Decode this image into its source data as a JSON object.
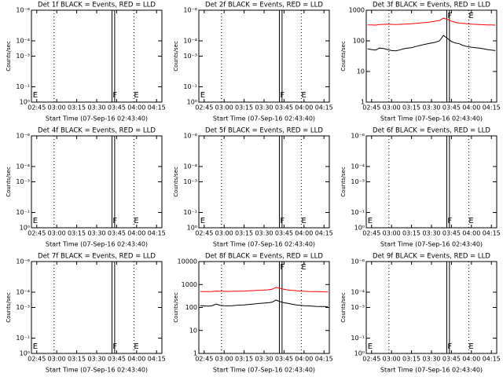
{
  "chart_data": [
    {
      "type": "line",
      "title": "Det 1f BLACK = Events, RED = LLD",
      "y_label": "Counts/sec",
      "x_label": "Start Time (07-Sep-16 02:43:40)",
      "y_scale": "log",
      "xlim": [
        161,
        259
      ],
      "ylim": [
        1,
        1e-06
      ],
      "xticks": [
        {
          "value": 165,
          "label": "02:45"
        },
        {
          "value": 180,
          "label": "03:00"
        },
        {
          "value": 195,
          "label": "03:15"
        },
        {
          "value": 210,
          "label": "03:30"
        },
        {
          "value": 225,
          "label": "03:45"
        },
        {
          "value": 240,
          "label": "04:00"
        },
        {
          "value": 255,
          "label": "04:15"
        }
      ],
      "yticks": [
        {
          "value": 1,
          "label": "10⁰"
        },
        {
          "value": 0.1,
          "label": "10⁻¹"
        },
        {
          "value": 0.001,
          "label": "10⁻³"
        },
        {
          "value": 0.0001,
          "label": "10⁻⁴"
        },
        {
          "value": 1e-06,
          "label": "10⁻⁶"
        }
      ],
      "vlines_dotted": [
        178,
        238
      ],
      "vlines_solid": [
        221.5,
        223.5
      ],
      "annotations": [
        {
          "text": "E",
          "x": 162,
          "y": 1
        },
        {
          "text": "F",
          "x": 222,
          "y": 1
        },
        {
          "text": "E",
          "x": 238,
          "y": 1
        }
      ],
      "x": [],
      "series": []
    },
    {
      "type": "line",
      "title": "Det 2f BLACK = Events, RED = LLD",
      "y_label": "Counts/sec",
      "x_label": "Start Time (07-Sep-16 02:43:40)",
      "y_scale": "log",
      "xlim": [
        161,
        259
      ],
      "ylim": [
        1,
        1e-06
      ],
      "xticks": [
        {
          "value": 165,
          "label": "02:45"
        },
        {
          "value": 180,
          "label": "03:00"
        },
        {
          "value": 195,
          "label": "03:15"
        },
        {
          "value": 210,
          "label": "03:30"
        },
        {
          "value": 225,
          "label": "03:45"
        },
        {
          "value": 240,
          "label": "04:00"
        },
        {
          "value": 255,
          "label": "04:15"
        }
      ],
      "yticks": [
        {
          "value": 1,
          "label": "10⁰"
        },
        {
          "value": 0.1,
          "label": "10⁻¹"
        },
        {
          "value": 0.001,
          "label": "10⁻³"
        },
        {
          "value": 0.0001,
          "label": "10⁻⁴"
        },
        {
          "value": 1e-06,
          "label": "10⁻⁶"
        }
      ],
      "vlines_dotted": [
        178,
        238
      ],
      "vlines_solid": [
        221.5,
        223.5
      ],
      "annotations": [
        {
          "text": "E",
          "x": 162,
          "y": 1
        },
        {
          "text": "F",
          "x": 222,
          "y": 1
        },
        {
          "text": "E",
          "x": 238,
          "y": 1
        }
      ],
      "x": [],
      "series": []
    },
    {
      "type": "line",
      "title": "Det 3f BLACK = Events, RED = LLD",
      "y_label": "Counts/sec",
      "x_label": "Start Time (07-Sep-16 02:43:40)",
      "y_scale": "log",
      "xlim": [
        161,
        259
      ],
      "ylim": [
        1,
        1000
      ],
      "xticks": [
        {
          "value": 165,
          "label": "02:45"
        },
        {
          "value": 180,
          "label": "03:00"
        },
        {
          "value": 195,
          "label": "03:15"
        },
        {
          "value": 210,
          "label": "03:30"
        },
        {
          "value": 225,
          "label": "03:45"
        },
        {
          "value": 240,
          "label": "04:00"
        },
        {
          "value": 255,
          "label": "04:15"
        }
      ],
      "yticks": [
        1,
        10,
        100,
        1000
      ],
      "vlines_dotted": [
        178,
        238
      ],
      "vlines_solid": [
        221.5,
        223.5
      ],
      "annotations": [
        {
          "text": "F",
          "x": 222,
          "y": 1000
        },
        {
          "text": "E",
          "x": 238,
          "y": 1000
        }
      ],
      "x": [
        162,
        165,
        168,
        171,
        174,
        177,
        180,
        183,
        186,
        189,
        192,
        195,
        198,
        201,
        204,
        207,
        210,
        213,
        216,
        219,
        222,
        225,
        228,
        231,
        234,
        237,
        240,
        243,
        246,
        249,
        252,
        255,
        258
      ],
      "series": [
        {
          "color": "#ff0000",
          "values": [
            330,
            330,
            325,
            340,
            345,
            350,
            345,
            340,
            345,
            350,
            355,
            360,
            370,
            380,
            390,
            400,
            420,
            440,
            460,
            550,
            500,
            440,
            400,
            380,
            370,
            360,
            350,
            345,
            340,
            335,
            330,
            330,
            325
          ]
        },
        {
          "color": "#000000",
          "values": [
            55,
            52,
            50,
            58,
            56,
            52,
            48,
            47,
            50,
            55,
            58,
            60,
            65,
            70,
            75,
            80,
            85,
            90,
            100,
            150,
            120,
            95,
            85,
            80,
            70,
            65,
            62,
            60,
            58,
            55,
            52,
            50,
            48
          ]
        }
      ]
    },
    {
      "type": "line",
      "title": "Det 4f BLACK = Events, RED = LLD",
      "y_label": "Counts/sec",
      "x_label": "Start Time (07-Sep-16 02:43:40)",
      "y_scale": "log",
      "xlim": [
        161,
        259
      ],
      "ylim": [
        1,
        1e-06
      ],
      "xticks": [
        {
          "value": 165,
          "label": "02:45"
        },
        {
          "value": 180,
          "label": "03:00"
        },
        {
          "value": 195,
          "label": "03:15"
        },
        {
          "value": 210,
          "label": "03:30"
        },
        {
          "value": 225,
          "label": "03:45"
        },
        {
          "value": 240,
          "label": "04:00"
        },
        {
          "value": 255,
          "label": "04:15"
        }
      ],
      "yticks": [
        {
          "value": 1,
          "label": "10⁰"
        },
        {
          "value": 0.1,
          "label": "10⁻¹"
        },
        {
          "value": 0.001,
          "label": "10⁻³"
        },
        {
          "value": 0.0001,
          "label": "10⁻⁴"
        },
        {
          "value": 1e-06,
          "label": "10⁻⁶"
        }
      ],
      "vlines_dotted": [
        178,
        238
      ],
      "vlines_solid": [
        221.5,
        223.5
      ],
      "annotations": [
        {
          "text": "E",
          "x": 162,
          "y": 1
        },
        {
          "text": "F",
          "x": 222,
          "y": 1
        },
        {
          "text": "E",
          "x": 238,
          "y": 1
        }
      ],
      "x": [],
      "series": []
    },
    {
      "type": "line",
      "title": "Det 5f BLACK = Events, RED = LLD",
      "y_label": "Counts/sec",
      "x_label": "Start Time (07-Sep-16 02:43:40)",
      "y_scale": "log",
      "xlim": [
        161,
        259
      ],
      "ylim": [
        1,
        1e-06
      ],
      "xticks": [
        {
          "value": 165,
          "label": "02:45"
        },
        {
          "value": 180,
          "label": "03:00"
        },
        {
          "value": 195,
          "label": "03:15"
        },
        {
          "value": 210,
          "label": "03:30"
        },
        {
          "value": 225,
          "label": "03:45"
        },
        {
          "value": 240,
          "label": "04:00"
        },
        {
          "value": 255,
          "label": "04:15"
        }
      ],
      "yticks": [
        {
          "value": 1,
          "label": "10⁰"
        },
        {
          "value": 0.1,
          "label": "10⁻¹"
        },
        {
          "value": 0.001,
          "label": "10⁻³"
        },
        {
          "value": 0.0001,
          "label": "10⁻⁴"
        },
        {
          "value": 1e-06,
          "label": "10⁻⁶"
        }
      ],
      "vlines_dotted": [
        178,
        238
      ],
      "vlines_solid": [
        221.5,
        223.5
      ],
      "annotations": [
        {
          "text": "E",
          "x": 162,
          "y": 1
        },
        {
          "text": "F",
          "x": 222,
          "y": 1
        },
        {
          "text": "E",
          "x": 238,
          "y": 1
        }
      ],
      "x": [],
      "series": []
    },
    {
      "type": "line",
      "title": "Det 6f BLACK = Events, RED = LLD",
      "y_label": "Counts/sec",
      "x_label": "Start Time (07-Sep-16 02:43:40)",
      "y_scale": "log",
      "xlim": [
        161,
        259
      ],
      "ylim": [
        1,
        1e-06
      ],
      "xticks": [
        {
          "value": 165,
          "label": "02:45"
        },
        {
          "value": 180,
          "label": "03:00"
        },
        {
          "value": 195,
          "label": "03:15"
        },
        {
          "value": 210,
          "label": "03:30"
        },
        {
          "value": 225,
          "label": "03:45"
        },
        {
          "value": 240,
          "label": "04:00"
        },
        {
          "value": 255,
          "label": "04:15"
        }
      ],
      "yticks": [
        {
          "value": 1,
          "label": "10⁰"
        },
        {
          "value": 0.1,
          "label": "10⁻¹"
        },
        {
          "value": 0.001,
          "label": "10⁻³"
        },
        {
          "value": 0.0001,
          "label": "10⁻⁴"
        },
        {
          "value": 1e-06,
          "label": "10⁻⁶"
        }
      ],
      "vlines_dotted": [
        178,
        238
      ],
      "vlines_solid": [
        221.5,
        223.5
      ],
      "annotations": [
        {
          "text": "E",
          "x": 162,
          "y": 1
        },
        {
          "text": "F",
          "x": 222,
          "y": 1
        },
        {
          "text": "E",
          "x": 238,
          "y": 1
        }
      ],
      "x": [],
      "series": []
    },
    {
      "type": "line",
      "title": "Det 7f BLACK = Events, RED = LLD",
      "y_label": "Counts/sec",
      "x_label": "Start Time (07-Sep-16 02:43:40)",
      "y_scale": "log",
      "xlim": [
        161,
        259
      ],
      "ylim": [
        1,
        1e-06
      ],
      "xticks": [
        {
          "value": 165,
          "label": "02:45"
        },
        {
          "value": 180,
          "label": "03:00"
        },
        {
          "value": 195,
          "label": "03:15"
        },
        {
          "value": 210,
          "label": "03:30"
        },
        {
          "value": 225,
          "label": "03:45"
        },
        {
          "value": 240,
          "label": "04:00"
        },
        {
          "value": 255,
          "label": "04:15"
        }
      ],
      "yticks": [
        {
          "value": 1,
          "label": "10⁰"
        },
        {
          "value": 0.1,
          "label": "10⁻¹"
        },
        {
          "value": 0.001,
          "label": "10⁻³"
        },
        {
          "value": 0.0001,
          "label": "10⁻⁴"
        },
        {
          "value": 1e-06,
          "label": "10⁻⁶"
        }
      ],
      "vlines_dotted": [
        178,
        238
      ],
      "vlines_solid": [
        221.5,
        223.5
      ],
      "annotations": [
        {
          "text": "E",
          "x": 162,
          "y": 1
        },
        {
          "text": "F",
          "x": 222,
          "y": 1
        },
        {
          "text": "E",
          "x": 238,
          "y": 1
        }
      ],
      "x": [],
      "series": []
    },
    {
      "type": "line",
      "title": "Det 8f BLACK = Events, RED = LLD",
      "y_label": "Counts/sec",
      "x_label": "Start Time (07-Sep-16 02:43:40)",
      "y_scale": "log",
      "xlim": [
        161,
        259
      ],
      "ylim": [
        1,
        10000
      ],
      "xticks": [
        {
          "value": 165,
          "label": "02:45"
        },
        {
          "value": 180,
          "label": "03:00"
        },
        {
          "value": 195,
          "label": "03:15"
        },
        {
          "value": 210,
          "label": "03:30"
        },
        {
          "value": 225,
          "label": "03:45"
        },
        {
          "value": 240,
          "label": "04:00"
        },
        {
          "value": 255,
          "label": "04:15"
        }
      ],
      "yticks": [
        1,
        10,
        100,
        1000,
        10000
      ],
      "vlines_dotted": [
        178,
        238
      ],
      "vlines_solid": [
        221.5,
        223.5
      ],
      "annotations": [
        {
          "text": "F",
          "x": 222,
          "y": 10000
        },
        {
          "text": "E",
          "x": 238,
          "y": 10000
        }
      ],
      "x": [
        162,
        165,
        168,
        171,
        174,
        177,
        180,
        183,
        186,
        189,
        192,
        195,
        198,
        201,
        204,
        207,
        210,
        213,
        216,
        219,
        222,
        225,
        228,
        231,
        234,
        237,
        240,
        243,
        246,
        249,
        252,
        255,
        258
      ],
      "series": [
        {
          "color": "#ff0000",
          "values": [
            500,
            495,
            490,
            500,
            520,
            510,
            505,
            500,
            505,
            510,
            515,
            520,
            530,
            540,
            550,
            560,
            575,
            590,
            620,
            750,
            680,
            620,
            580,
            560,
            540,
            520,
            510,
            500,
            495,
            490,
            485,
            480,
            480
          ]
        },
        {
          "color": "#000000",
          "values": [
            120,
            118,
            115,
            120,
            140,
            125,
            120,
            118,
            120,
            125,
            128,
            130,
            135,
            140,
            145,
            150,
            155,
            160,
            170,
            210,
            180,
            160,
            150,
            140,
            130,
            125,
            120,
            118,
            115,
            112,
            110,
            110,
            108
          ]
        }
      ]
    },
    {
      "type": "line",
      "title": "Det 9f BLACK = Events, RED = LLD",
      "y_label": "Counts/sec",
      "x_label": "Start Time (07-Sep-16 02:43:40)",
      "y_scale": "log",
      "xlim": [
        161,
        259
      ],
      "ylim": [
        1,
        1e-06
      ],
      "xticks": [
        {
          "value": 165,
          "label": "02:45"
        },
        {
          "value": 180,
          "label": "03:00"
        },
        {
          "value": 195,
          "label": "03:15"
        },
        {
          "value": 210,
          "label": "03:30"
        },
        {
          "value": 225,
          "label": "03:45"
        },
        {
          "value": 240,
          "label": "04:00"
        },
        {
          "value": 255,
          "label": "04:15"
        }
      ],
      "yticks": [
        {
          "value": 1,
          "label": "10⁰"
        },
        {
          "value": 0.1,
          "label": "10⁻¹"
        },
        {
          "value": 0.001,
          "label": "10⁻³"
        },
        {
          "value": 0.0001,
          "label": "10⁻⁴"
        },
        {
          "value": 1e-06,
          "label": "10⁻⁶"
        }
      ],
      "vlines_dotted": [
        178,
        238
      ],
      "vlines_solid": [
        221.5,
        223.5
      ],
      "annotations": [
        {
          "text": "E",
          "x": 162,
          "y": 1
        },
        {
          "text": "F",
          "x": 222,
          "y": 1
        },
        {
          "text": "E",
          "x": 238,
          "y": 1
        }
      ],
      "x": [],
      "series": []
    }
  ]
}
